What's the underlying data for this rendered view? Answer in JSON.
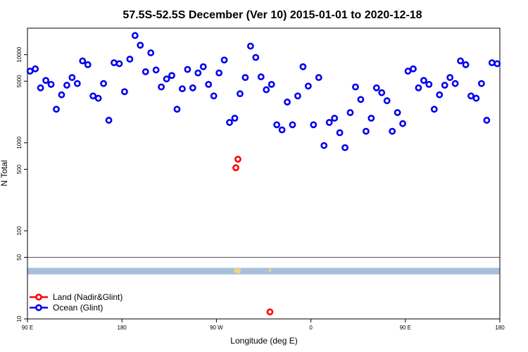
{
  "chart_data": {
    "type": "scatter",
    "title": "57.5S-52.5S December (Ver 10)   2015-01-01 to 2020-12-18",
    "xlabel": "Longitude (deg E)",
    "ylabel": "N Total",
    "xlim": [
      90,
      540
    ],
    "ylim": [
      10,
      20000
    ],
    "y_scale": "log",
    "x_ticks": [
      {
        "value": 90,
        "label": "90 E"
      },
      {
        "value": 180,
        "label": "180"
      },
      {
        "value": 270,
        "label": "90 W"
      },
      {
        "value": 360,
        "label": "0"
      },
      {
        "value": 450,
        "label": "90 E"
      },
      {
        "value": 540,
        "label": "180"
      }
    ],
    "y_ticks": [
      {
        "value": 10,
        "label": "10"
      },
      {
        "value": 50,
        "label": "50"
      },
      {
        "value": 100,
        "label": "100"
      },
      {
        "value": 500,
        "label": "500"
      },
      {
        "value": 1000,
        "label": "1000"
      },
      {
        "value": 5000,
        "label": "5000"
      },
      {
        "value": 10000,
        "label": "10000"
      }
    ],
    "reference_line_y": 50,
    "map_strip": {
      "y_top": 38,
      "y_bottom": 32,
      "color": "#a8bfdc",
      "land_color": "#f2d678"
    },
    "legend_position": "bottom-left",
    "series": [
      {
        "name": "Land (Nadir&Glint)",
        "color": "#ff0000",
        "points": [
          {
            "x": 288.5,
            "y": 520
          },
          {
            "x": 290.5,
            "y": 650
          },
          {
            "x": 321,
            "y": 12
          }
        ]
      },
      {
        "name": "Ocean (Glint)",
        "color": "#0000ee",
        "points": [
          {
            "x": 92.5,
            "y": 6500
          },
          {
            "x": 97.5,
            "y": 6900
          },
          {
            "x": 102.5,
            "y": 4200
          },
          {
            "x": 107.5,
            "y": 5100
          },
          {
            "x": 112.5,
            "y": 4600
          },
          {
            "x": 117.5,
            "y": 2400
          },
          {
            "x": 122.5,
            "y": 3500
          },
          {
            "x": 127.5,
            "y": 4500
          },
          {
            "x": 132.5,
            "y": 5500
          },
          {
            "x": 137.5,
            "y": 4700
          },
          {
            "x": 142.5,
            "y": 8500
          },
          {
            "x": 147.5,
            "y": 7700
          },
          {
            "x": 152.5,
            "y": 3400
          },
          {
            "x": 157.5,
            "y": 3200
          },
          {
            "x": 162.5,
            "y": 4700
          },
          {
            "x": 167.5,
            "y": 1800
          },
          {
            "x": 172.5,
            "y": 8100
          },
          {
            "x": 177.5,
            "y": 7900
          },
          {
            "x": 182.5,
            "y": 3800
          },
          {
            "x": 187.5,
            "y": 8900
          },
          {
            "x": 192.5,
            "y": 16500
          },
          {
            "x": 197.5,
            "y": 12800
          },
          {
            "x": 202.5,
            "y": 6400
          },
          {
            "x": 207.5,
            "y": 10500
          },
          {
            "x": 212.5,
            "y": 6700
          },
          {
            "x": 217.5,
            "y": 4300
          },
          {
            "x": 222.5,
            "y": 5300
          },
          {
            "x": 227.5,
            "y": 5800
          },
          {
            "x": 232.5,
            "y": 2400
          },
          {
            "x": 237.5,
            "y": 4100
          },
          {
            "x": 242.5,
            "y": 6800
          },
          {
            "x": 247.5,
            "y": 4200
          },
          {
            "x": 252.5,
            "y": 6200
          },
          {
            "x": 257.5,
            "y": 7300
          },
          {
            "x": 262.5,
            "y": 4600
          },
          {
            "x": 267.5,
            "y": 3400
          },
          {
            "x": 272.5,
            "y": 6200
          },
          {
            "x": 277.5,
            "y": 8700
          },
          {
            "x": 282.5,
            "y": 1700
          },
          {
            "x": 287.5,
            "y": 1900
          },
          {
            "x": 292.5,
            "y": 3600
          },
          {
            "x": 297.5,
            "y": 5500
          },
          {
            "x": 302.5,
            "y": 12500
          },
          {
            "x": 307.5,
            "y": 9300
          },
          {
            "x": 312.5,
            "y": 5600
          },
          {
            "x": 317.5,
            "y": 4000
          },
          {
            "x": 322.5,
            "y": 4600
          },
          {
            "x": 327.5,
            "y": 1600
          },
          {
            "x": 332.5,
            "y": 1400
          },
          {
            "x": 337.5,
            "y": 2900
          },
          {
            "x": 342.5,
            "y": 1600
          },
          {
            "x": 347.5,
            "y": 3400
          },
          {
            "x": 352.5,
            "y": 7300
          },
          {
            "x": 357.5,
            "y": 4400
          },
          {
            "x": 362.5,
            "y": 1600
          },
          {
            "x": 367.5,
            "y": 5500
          },
          {
            "x": 372.5,
            "y": 930
          },
          {
            "x": 377.5,
            "y": 1700
          },
          {
            "x": 382.5,
            "y": 1900
          },
          {
            "x": 387.5,
            "y": 1300
          },
          {
            "x": 392.5,
            "y": 880
          },
          {
            "x": 397.5,
            "y": 2200
          },
          {
            "x": 402.5,
            "y": 4300
          },
          {
            "x": 407.5,
            "y": 3100
          },
          {
            "x": 412.5,
            "y": 1350
          },
          {
            "x": 417.5,
            "y": 1900
          },
          {
            "x": 422.5,
            "y": 4200
          },
          {
            "x": 427.5,
            "y": 3700
          },
          {
            "x": 432.5,
            "y": 3000
          },
          {
            "x": 437.5,
            "y": 1350
          },
          {
            "x": 442.5,
            "y": 2200
          },
          {
            "x": 447.5,
            "y": 1650
          },
          {
            "x": 452.5,
            "y": 6500
          },
          {
            "x": 457.5,
            "y": 6900
          },
          {
            "x": 462.5,
            "y": 4200
          },
          {
            "x": 467.5,
            "y": 5100
          },
          {
            "x": 472.5,
            "y": 4600
          },
          {
            "x": 477.5,
            "y": 2400
          },
          {
            "x": 482.5,
            "y": 3500
          },
          {
            "x": 487.5,
            "y": 4500
          },
          {
            "x": 492.5,
            "y": 5500
          },
          {
            "x": 497.5,
            "y": 4700
          },
          {
            "x": 502.5,
            "y": 8500
          },
          {
            "x": 507.5,
            "y": 7700
          },
          {
            "x": 512.5,
            "y": 3400
          },
          {
            "x": 517.5,
            "y": 3200
          },
          {
            "x": 522.5,
            "y": 4700
          },
          {
            "x": 527.5,
            "y": 1800
          },
          {
            "x": 532.5,
            "y": 8100
          },
          {
            "x": 537.5,
            "y": 7900
          }
        ]
      }
    ]
  }
}
